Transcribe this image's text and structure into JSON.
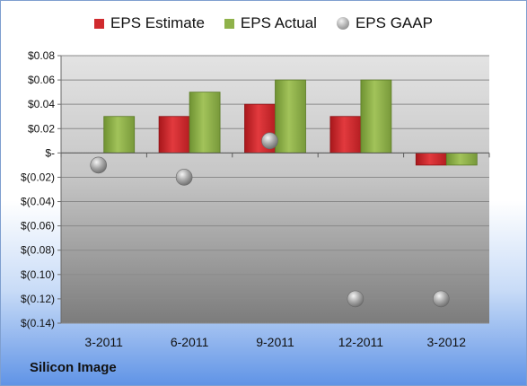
{
  "footer_label": "Silicon Image",
  "colors": {
    "estimate": "#d02a2e",
    "actual": "#8fb24a",
    "gaap": "#9e9e9e"
  },
  "chart_data": {
    "type": "bar",
    "categories": [
      "3-2011",
      "6-2011",
      "9-2011",
      "12-2011",
      "3-2012"
    ],
    "series": [
      {
        "name": "EPS Estimate",
        "type": "bar",
        "values": [
          null,
          0.03,
          0.04,
          0.03,
          -0.01
        ]
      },
      {
        "name": "EPS Actual",
        "type": "bar",
        "values": [
          0.03,
          0.05,
          0.06,
          0.06,
          -0.01
        ]
      },
      {
        "name": "EPS GAAP",
        "type": "scatter",
        "values": [
          -0.01,
          -0.02,
          0.01,
          -0.12,
          -0.12
        ]
      }
    ],
    "yticks": [
      {
        "value": 0.08,
        "label": "$0.08"
      },
      {
        "value": 0.06,
        "label": "$0.06"
      },
      {
        "value": 0.04,
        "label": "$0.04"
      },
      {
        "value": 0.02,
        "label": "$0.02"
      },
      {
        "value": 0,
        "label": "$-"
      },
      {
        "value": -0.02,
        "label": "$(0.02)"
      },
      {
        "value": -0.04,
        "label": "$(0.04)"
      },
      {
        "value": -0.06,
        "label": "$(0.06)"
      },
      {
        "value": -0.08,
        "label": "$(0.08)"
      },
      {
        "value": -0.1,
        "label": "$(0.10)"
      },
      {
        "value": -0.12,
        "label": "$(0.12)"
      },
      {
        "value": -0.14,
        "label": "$(0.14)"
      }
    ],
    "ylim": [
      -0.14,
      0.08
    ],
    "grid": true,
    "legend_position": "top"
  }
}
